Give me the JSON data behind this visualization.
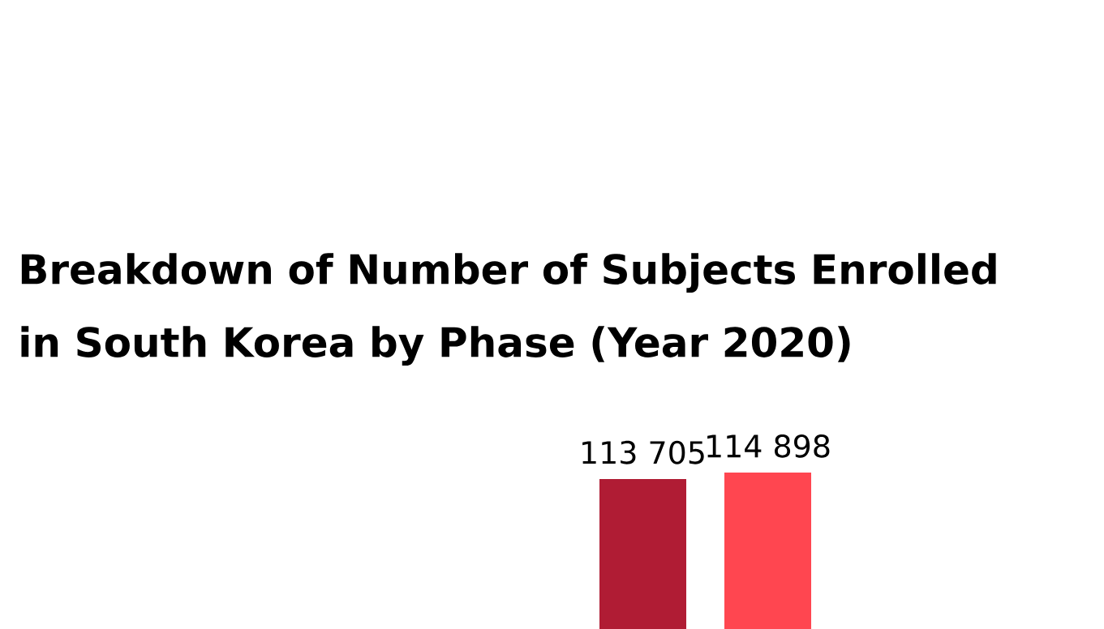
{
  "chart_data": {
    "type": "bar",
    "title": "Breakdown of Number of Subjects Enrolled in South Korea by Phase (Year 2020)",
    "categories": [
      null,
      null
    ],
    "values": [
      113705,
      114898
    ],
    "colors": [
      "#b01c34",
      "#ff4650"
    ],
    "value_labels": [
      "113 705",
      "114 898"
    ]
  }
}
